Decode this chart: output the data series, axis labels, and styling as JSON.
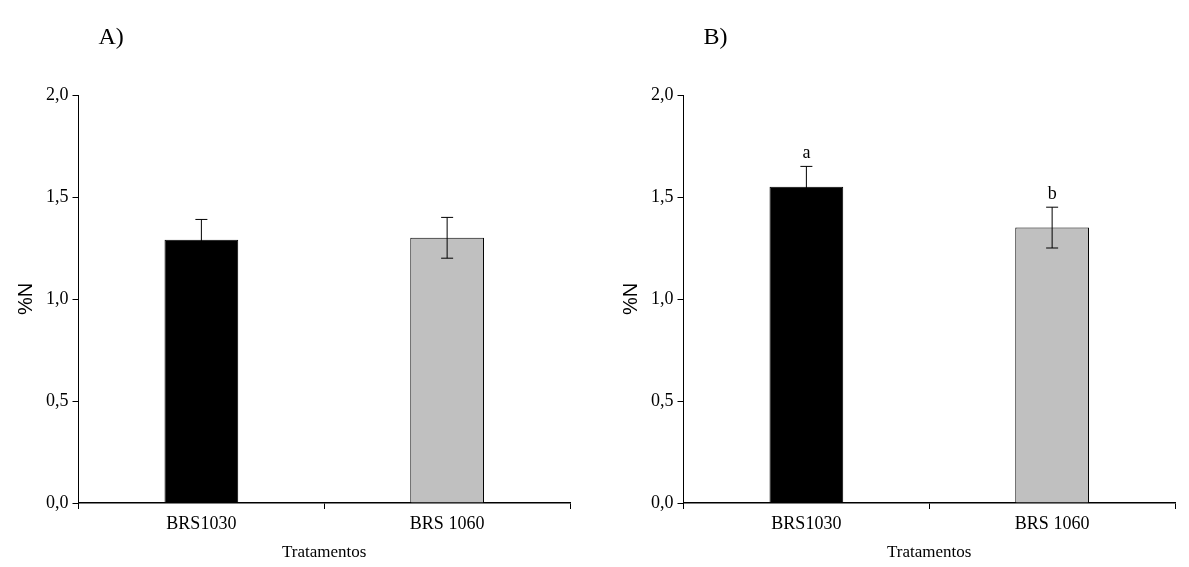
{
  "chart_data": [
    {
      "type": "bar",
      "title": "A)",
      "xlabel": "Tratamentos",
      "ylabel": "%N",
      "categories": [
        "BRS1030",
        "BRS 1060"
      ],
      "values": [
        1.29,
        1.3
      ],
      "colors": [
        "#000000",
        "#c0c0c0"
      ],
      "errors": [
        0.1,
        0.1
      ],
      "ylim": [
        0,
        2
      ],
      "yticks": [
        {
          "value": 0,
          "label": "0,0"
        },
        {
          "value": 0.5,
          "label": "0,5"
        },
        {
          "value": 1,
          "label": "1,0"
        },
        {
          "value": 1.5,
          "label": "1,5"
        },
        {
          "value": 2,
          "label": "2,0"
        }
      ],
      "grid": false,
      "legend": false
    },
    {
      "type": "bar",
      "title": "B)",
      "xlabel": "Tratamentos",
      "ylabel": "%N",
      "categories": [
        "BRS1030",
        "BRS 1060"
      ],
      "values": [
        1.55,
        1.35
      ],
      "colors": [
        "#000000",
        "#c0c0c0"
      ],
      "errors": [
        0.1,
        0.1
      ],
      "ylim": [
        0,
        2
      ],
      "yticks": [
        {
          "value": 0,
          "label": "0,0"
        },
        {
          "value": 0.5,
          "label": "0,5"
        },
        {
          "value": 1,
          "label": "1,0"
        },
        {
          "value": 1.5,
          "label": "1,5"
        },
        {
          "value": 2,
          "label": "2,0"
        }
      ],
      "grid": false,
      "legend": false,
      "annotations": [
        {
          "text": "a",
          "x": "BRS1030",
          "y": 1.65
        },
        {
          "text": "b",
          "x": "BRS 1060",
          "y": 1.45
        }
      ]
    }
  ]
}
